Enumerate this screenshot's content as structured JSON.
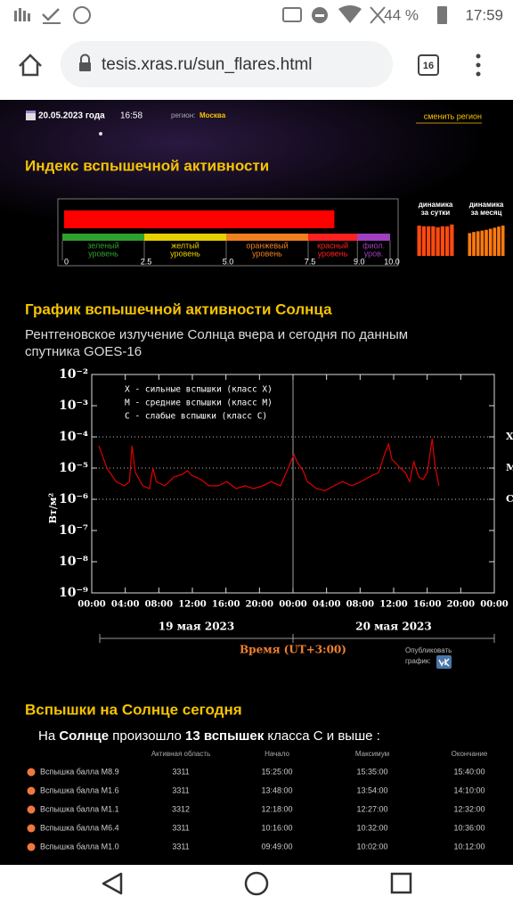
{
  "status_bar": {
    "battery": "44 %",
    "time": "17:59"
  },
  "browser": {
    "url": "tesis.xras.ru/sun_flares.html",
    "tab_count": "16"
  },
  "header": {
    "date": "20.05.2023 года",
    "time": "16:58",
    "region_label": "регион:",
    "region": "Москва",
    "change_region": "сменить регион"
  },
  "index": {
    "title": "Индекс вспышечной активности",
    "value": 8.3,
    "bar_color": "#ff0000",
    "scale": [
      0,
      2.5,
      {
        "value": 5,
        "label": "5.0"
      },
      7.5,
      {
        "value": 9,
        "label": "9.0"
      },
      {
        "value": 10,
        "label": "10.0"
      }
    ],
    "levels": [
      {
        "lines": [
          "зеленый",
          "уровень"
        ],
        "color": "#2fa02f"
      },
      {
        "lines": [
          "желтый",
          "уровень"
        ],
        "color": "#e8d000"
      },
      {
        "lines": [
          "оранжевый",
          "уровень"
        ],
        "color": "#f08020"
      },
      {
        "lines": [
          "красный",
          "уровень"
        ],
        "color": "#ff2020"
      },
      {
        "lines": [
          "фиол.",
          "уров."
        ],
        "color": "#a040c0"
      }
    ],
    "day_dynamics": {
      "lines": [
        "динамика",
        "за сутки"
      ],
      "color": "#ff4a10",
      "values": [
        8.5,
        8.3,
        8.3,
        8.3,
        8.0,
        8.3,
        8.3,
        8.8
      ]
    },
    "month_dynamics": {
      "lines": [
        "динамика",
        "за месяц"
      ],
      "color": "#ff7a10",
      "values": [
        6.4,
        6.7,
        6.9,
        7.1,
        7.3,
        7.6,
        7.9,
        8.2,
        8.5
      ]
    }
  },
  "chart_data": {
    "type": "line",
    "title": "График вспышечной активности Солнца",
    "subtitle_lines": [
      "Рентгеновское излучение Солнца вчера и сегодня по данным",
      "спутника GOES-16"
    ],
    "y_label": "Вт/м²",
    "x_label": "Время (UT+3:00)",
    "log_y": true,
    "ylim": [
      1e-09,
      0.01
    ],
    "yticks": [
      {
        "value": 0.01,
        "label": "10⁻²"
      },
      {
        "value": 0.001,
        "label": "10⁻³"
      },
      {
        "value": 0.0001,
        "label": "10⁻⁴"
      },
      {
        "value": 1e-05,
        "label": "10⁻⁵"
      },
      {
        "value": 1e-06,
        "label": "10⁻⁶"
      },
      {
        "value": 1e-07,
        "label": "10⁻⁷"
      },
      {
        "value": 1e-08,
        "label": "10⁻⁸"
      },
      {
        "value": 1e-09,
        "label": "10⁻⁹"
      }
    ],
    "xlim": [
      0,
      48
    ],
    "xticks": [
      {
        "value": 0,
        "label": "00:00"
      },
      {
        "value": 4,
        "label": "04:00"
      },
      {
        "value": 8,
        "label": "08:00"
      },
      {
        "value": 12,
        "label": "12:00"
      },
      {
        "value": 16,
        "label": "16:00"
      },
      {
        "value": 20,
        "label": "20:00"
      },
      {
        "value": 24,
        "label": "00:00"
      },
      {
        "value": 28,
        "label": "04:00"
      },
      {
        "value": 32,
        "label": "08:00"
      },
      {
        "value": 36,
        "label": "12:00"
      },
      {
        "value": 40,
        "label": "16:00"
      },
      {
        "value": 44,
        "label": "20:00"
      },
      {
        "value": 48,
        "label": "00:00"
      }
    ],
    "dates": [
      "19 мая 2023",
      "20 мая 2023"
    ],
    "legend": [
      "X - сильные вспышки (класс X)",
      "M - средние вспышки (класс M)",
      "C - слабые вспышки (класс C)"
    ],
    "levels": [
      {
        "name": "X",
        "value": 0.0001
      },
      {
        "name": "M",
        "value": 1e-05
      },
      {
        "name": "C",
        "value": 1e-06
      }
    ],
    "series": [
      {
        "color": "#e00000",
        "x": [
          0.85,
          1.8,
          2.9,
          3.9,
          4.5,
          4.8,
          5.2,
          6.1,
          6.9,
          7.3,
          7.7,
          8.7,
          9.8,
          10.8,
          11.4,
          11.9,
          13.0,
          14.0,
          15.1,
          16.1,
          17.2,
          18.3,
          19.3,
          20.4,
          21.4,
          22.5,
          23.2,
          24.1,
          24.6,
          25.2,
          25.7,
          26.8,
          27.8,
          28.9,
          29.9,
          31.0,
          32.1,
          33.1,
          34.2,
          34.9,
          35.4,
          35.8,
          36.3,
          36.8,
          37.4,
          37.9,
          38.4,
          39.0,
          39.5,
          40.0,
          40.6,
          40.9,
          41.4
        ],
        "values": [
          5.2e-05,
          1e-05,
          3.7e-06,
          2.7e-06,
          3.7e-06,
          5.2e-05,
          7.2e-06,
          2.7e-06,
          2.2e-06,
          1e-05,
          3.7e-06,
          2.7e-06,
          5.2e-06,
          6.3e-06,
          8.2e-06,
          5.9e-06,
          4.3e-06,
          2.7e-06,
          2.7e-06,
          3.7e-06,
          2.2e-06,
          2.7e-06,
          2.2e-06,
          2.7e-06,
          3.7e-06,
          2.7e-06,
          7.2e-06,
          2.7e-05,
          1.4e-05,
          8.2e-06,
          3.7e-06,
          2.2e-06,
          1.9e-06,
          2.7e-06,
          3.7e-06,
          2.7e-06,
          3.7e-06,
          5.2e-06,
          7.2e-06,
          2.7e-05,
          5.9e-05,
          1.9e-05,
          1.4e-05,
          1e-05,
          7.2e-06,
          3.7e-06,
          1.6e-05,
          5.2e-06,
          4.3e-06,
          7.2e-06,
          8.7e-05,
          1.4e-05,
          2.7e-06
        ]
      }
    ],
    "publish_lines": [
      "Опубликовать",
      "график:"
    ]
  },
  "flares": {
    "title": "Вспышки на Солнце сегодня",
    "summary": [
      "На ",
      "Солнце",
      " произошло ",
      "13 вспышек",
      " класса С и выше :"
    ],
    "columns": [
      "Активная область",
      "Начало",
      "Максимум",
      "Окончание"
    ],
    "rows": [
      [
        "Вспышка балла M8.9",
        "3311",
        "15:25:00",
        "15:35:00",
        "15:40:00"
      ],
      [
        "Вспышка балла M1.6",
        "3311",
        "13:48:00",
        "13:54:00",
        "14:10:00"
      ],
      [
        "Вспышка балла M1.1",
        "3312",
        "12:18:00",
        "12:27:00",
        "12:32:00"
      ],
      [
        "Вспышка балла M6.4",
        "3311",
        "10:16:00",
        "10:32:00",
        "10:36:00"
      ],
      [
        "Вспышка балла M1.0",
        "3311",
        "09:49:00",
        "10:02:00",
        "10:12:00"
      ]
    ]
  }
}
